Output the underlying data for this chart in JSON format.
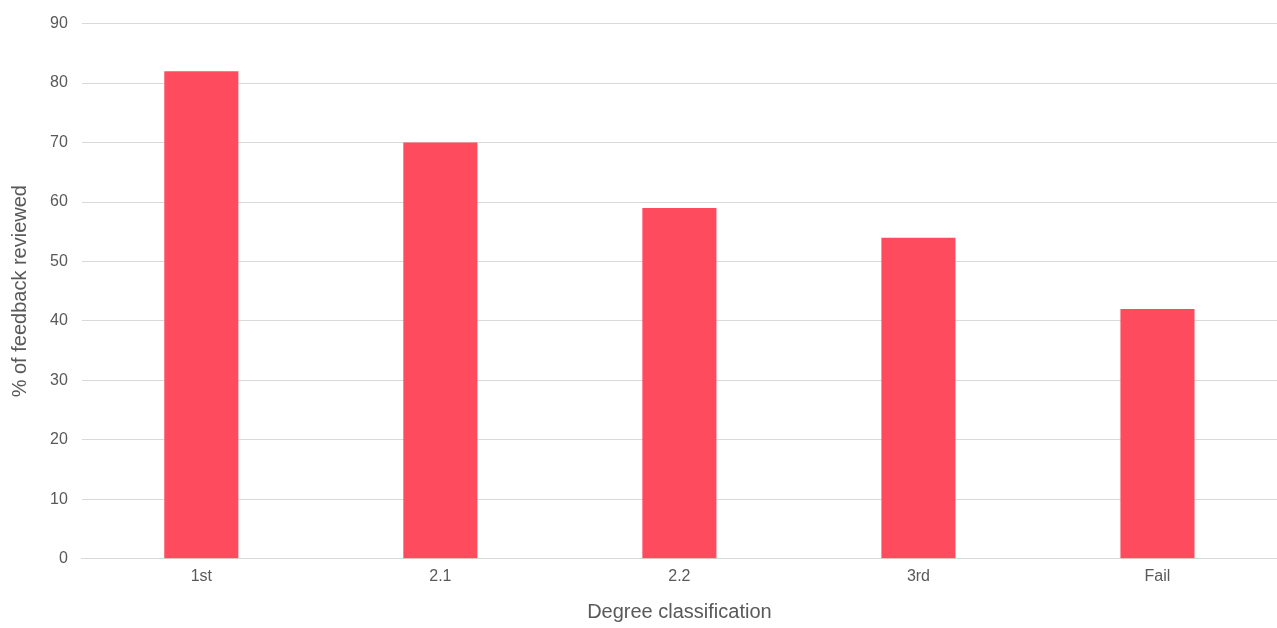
{
  "chart_data": {
    "type": "bar",
    "xlabel": "Degree classification",
    "ylabel": "% of feedback reviewed",
    "categories": [
      "1st",
      "2.1",
      "2.2",
      "3rd",
      "Fail"
    ],
    "values": [
      82,
      70,
      59,
      54,
      42
    ],
    "color": "#ff4b5e",
    "ylim": [
      0,
      90
    ],
    "yticks": [
      0,
      10,
      20,
      30,
      40,
      50,
      60,
      70,
      80,
      90
    ],
    "grid": "y",
    "legend": false
  }
}
